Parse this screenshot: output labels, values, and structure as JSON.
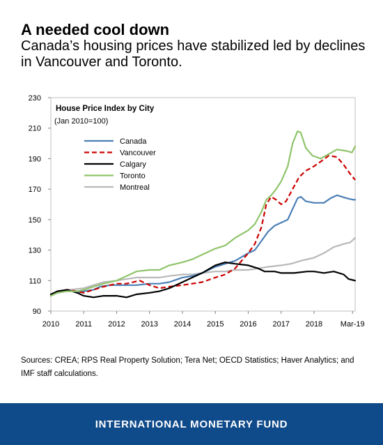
{
  "header": {
    "title": "A needed cool down",
    "subtitle": "Canada’s housing prices have stabilized led by declines in Vancouver and Toronto."
  },
  "footer": {
    "sources": "Sources: CREA; RPS Real Property Solution; Tera Net; OECD Statistics; Haver Analytics; and IMF staff calculations.",
    "brand": "INTERNATIONAL MONETARY FUND"
  },
  "chart_data": {
    "type": "line",
    "title": "House Price Index by City",
    "subtitle": "(Jan 2010=100)",
    "xlabel": "",
    "ylabel": "",
    "xlim": [
      2010,
      2019.25
    ],
    "ylim": [
      90,
      230
    ],
    "yticks": [
      90,
      110,
      130,
      150,
      170,
      190,
      210,
      230
    ],
    "xticks": [
      {
        "value": 2010,
        "label": "2010"
      },
      {
        "value": 2011,
        "label": "2011"
      },
      {
        "value": 2012,
        "label": "2012"
      },
      {
        "value": 2013,
        "label": "2013"
      },
      {
        "value": 2014,
        "label": "2014"
      },
      {
        "value": 2015,
        "label": "2015"
      },
      {
        "value": 2016,
        "label": "2016"
      },
      {
        "value": 2017,
        "label": "2017"
      },
      {
        "value": 2018,
        "label": "2018"
      },
      {
        "value": 2019.17,
        "label": "Mar-19"
      }
    ],
    "grid": false,
    "legend_position": "top-left",
    "series": [
      {
        "name": "Canada",
        "color": "#4a7fb5",
        "dash": "solid",
        "points": [
          [
            2010,
            100
          ],
          [
            2010.2,
            103
          ],
          [
            2010.5,
            104
          ],
          [
            2010.8,
            102
          ],
          [
            2011,
            103
          ],
          [
            2011.3,
            104
          ],
          [
            2011.5,
            106
          ],
          [
            2011.8,
            107
          ],
          [
            2012,
            107
          ],
          [
            2012.3,
            107
          ],
          [
            2012.6,
            107
          ],
          [
            2013,
            108
          ],
          [
            2013.3,
            108
          ],
          [
            2013.6,
            109
          ],
          [
            2014,
            112
          ],
          [
            2014.3,
            113
          ],
          [
            2014.6,
            115
          ],
          [
            2015,
            119
          ],
          [
            2015.3,
            121
          ],
          [
            2015.6,
            123
          ],
          [
            2016,
            128
          ],
          [
            2016.2,
            130
          ],
          [
            2016.4,
            136
          ],
          [
            2016.6,
            142
          ],
          [
            2016.8,
            146
          ],
          [
            2017,
            148
          ],
          [
            2017.2,
            150
          ],
          [
            2017.35,
            157
          ],
          [
            2017.5,
            164
          ],
          [
            2017.6,
            165
          ],
          [
            2017.75,
            162
          ],
          [
            2018,
            161
          ],
          [
            2018.3,
            161
          ],
          [
            2018.5,
            164
          ],
          [
            2018.7,
            166
          ],
          [
            2019,
            164
          ],
          [
            2019.2,
            163
          ],
          [
            2019.25,
            163
          ]
        ]
      },
      {
        "name": "Vancouver",
        "color": "#cc0000",
        "dash": "dashed",
        "points": [
          [
            2010,
            100
          ],
          [
            2010.2,
            103
          ],
          [
            2010.5,
            104
          ],
          [
            2010.8,
            103
          ],
          [
            2011,
            102
          ],
          [
            2011.3,
            104
          ],
          [
            2011.6,
            106
          ],
          [
            2012,
            108
          ],
          [
            2012.3,
            108
          ],
          [
            2012.7,
            110
          ],
          [
            2013,
            107
          ],
          [
            2013.3,
            105
          ],
          [
            2013.6,
            106
          ],
          [
            2014,
            107
          ],
          [
            2014.3,
            108
          ],
          [
            2014.6,
            109
          ],
          [
            2015,
            112
          ],
          [
            2015.3,
            114
          ],
          [
            2015.6,
            118
          ],
          [
            2016,
            128
          ],
          [
            2016.2,
            134
          ],
          [
            2016.4,
            145
          ],
          [
            2016.55,
            160
          ],
          [
            2016.7,
            165
          ],
          [
            2016.85,
            163
          ],
          [
            2017,
            160
          ],
          [
            2017.15,
            162
          ],
          [
            2017.35,
            170
          ],
          [
            2017.55,
            178
          ],
          [
            2017.75,
            182
          ],
          [
            2018,
            185
          ],
          [
            2018.2,
            188
          ],
          [
            2018.45,
            192
          ],
          [
            2018.7,
            191
          ],
          [
            2018.9,
            186
          ],
          [
            2019.1,
            180
          ],
          [
            2019.25,
            176
          ]
        ]
      },
      {
        "name": "Calgary",
        "color": "#000000",
        "dash": "solid",
        "points": [
          [
            2010,
            101
          ],
          [
            2010.2,
            103
          ],
          [
            2010.5,
            104
          ],
          [
            2010.8,
            102
          ],
          [
            2011,
            100
          ],
          [
            2011.3,
            99
          ],
          [
            2011.6,
            100
          ],
          [
            2012,
            100
          ],
          [
            2012.3,
            99
          ],
          [
            2012.6,
            101
          ],
          [
            2013,
            102
          ],
          [
            2013.3,
            103
          ],
          [
            2013.6,
            105
          ],
          [
            2014,
            109
          ],
          [
            2014.3,
            112
          ],
          [
            2014.6,
            115
          ],
          [
            2015,
            120
          ],
          [
            2015.3,
            122
          ],
          [
            2015.6,
            121
          ],
          [
            2016,
            120
          ],
          [
            2016.3,
            118
          ],
          [
            2016.5,
            116
          ],
          [
            2016.8,
            116
          ],
          [
            2017,
            115
          ],
          [
            2017.4,
            115
          ],
          [
            2017.8,
            116
          ],
          [
            2018,
            116
          ],
          [
            2018.3,
            115
          ],
          [
            2018.6,
            116
          ],
          [
            2018.9,
            114
          ],
          [
            2019.05,
            111
          ],
          [
            2019.25,
            110
          ]
        ]
      },
      {
        "name": "Toronto",
        "color": "#8fc46a",
        "dash": "solid",
        "points": [
          [
            2010,
            100
          ],
          [
            2010.2,
            102
          ],
          [
            2010.5,
            103
          ],
          [
            2010.8,
            103
          ],
          [
            2011,
            104
          ],
          [
            2011.3,
            106
          ],
          [
            2011.6,
            108
          ],
          [
            2012,
            110
          ],
          [
            2012.3,
            113
          ],
          [
            2012.6,
            116
          ],
          [
            2013,
            117
          ],
          [
            2013.3,
            117
          ],
          [
            2013.6,
            120
          ],
          [
            2014,
            122
          ],
          [
            2014.3,
            124
          ],
          [
            2014.6,
            127
          ],
          [
            2015,
            131
          ],
          [
            2015.3,
            133
          ],
          [
            2015.6,
            138
          ],
          [
            2016,
            143
          ],
          [
            2016.2,
            147
          ],
          [
            2016.4,
            155
          ],
          [
            2016.55,
            163
          ],
          [
            2016.7,
            166
          ],
          [
            2016.85,
            170
          ],
          [
            2017,
            175
          ],
          [
            2017.2,
            185
          ],
          [
            2017.35,
            200
          ],
          [
            2017.5,
            208
          ],
          [
            2017.6,
            207
          ],
          [
            2017.75,
            197
          ],
          [
            2017.95,
            192
          ],
          [
            2018.2,
            190
          ],
          [
            2018.45,
            193
          ],
          [
            2018.7,
            196
          ],
          [
            2019,
            195
          ],
          [
            2019.15,
            194
          ],
          [
            2019.25,
            198
          ]
        ]
      },
      {
        "name": "Montreal",
        "color": "#b8b8b8",
        "dash": "solid",
        "points": [
          [
            2010,
            100
          ],
          [
            2010.3,
            103
          ],
          [
            2010.6,
            104
          ],
          [
            2011,
            105
          ],
          [
            2011.3,
            107
          ],
          [
            2011.6,
            109
          ],
          [
            2012,
            110
          ],
          [
            2012.3,
            111
          ],
          [
            2012.6,
            112
          ],
          [
            2013,
            112
          ],
          [
            2013.3,
            112
          ],
          [
            2013.6,
            113
          ],
          [
            2014,
            114
          ],
          [
            2014.3,
            114
          ],
          [
            2014.6,
            115
          ],
          [
            2015,
            116
          ],
          [
            2015.3,
            116
          ],
          [
            2015.6,
            117
          ],
          [
            2016,
            117
          ],
          [
            2016.3,
            118
          ],
          [
            2016.6,
            119
          ],
          [
            2017,
            120
          ],
          [
            2017.3,
            121
          ],
          [
            2017.6,
            123
          ],
          [
            2018,
            125
          ],
          [
            2018.3,
            128
          ],
          [
            2018.6,
            132
          ],
          [
            2018.9,
            134
          ],
          [
            2019.1,
            135
          ],
          [
            2019.25,
            138
          ]
        ]
      }
    ]
  }
}
